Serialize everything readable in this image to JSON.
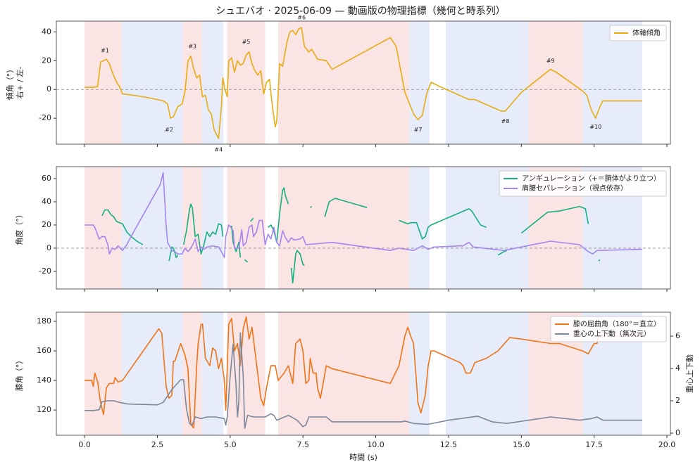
{
  "title": "シュエバオ · 2025-06-09 — 動画版の物理指標（幾何と時系列）",
  "spans": [
    {
      "start": 0,
      "end": 1.28,
      "color": "#fbe4e4"
    },
    {
      "start": 1.28,
      "end": 3.37,
      "color": "#e6ecf9"
    },
    {
      "start": 3.37,
      "end": 4.03,
      "color": "#fbe4e4"
    },
    {
      "start": 4.03,
      "end": 4.77,
      "color": "#e6ecf9"
    },
    {
      "start": 4.9,
      "end": 6.2,
      "color": "#fbe4e4"
    },
    {
      "start": 6.65,
      "end": 11.15,
      "color": "#fbe4e4"
    },
    {
      "start": 11.15,
      "end": 11.85,
      "color": "#e6ecf9"
    },
    {
      "start": 12.4,
      "end": 15.25,
      "color": "#e6ecf9"
    },
    {
      "start": 15.25,
      "end": 17.1,
      "color": "#fbe4e4"
    },
    {
      "start": 17.1,
      "end": 19.15,
      "color": "#e6ecf9"
    }
  ],
  "chart_data": [
    {
      "type": "line",
      "ylabel": [
        "傾角（°）",
        "右+ / 左-"
      ],
      "xlim": [
        -0.97,
        20.12
      ],
      "ylim": [
        -38,
        47.5
      ],
      "yticks": [
        -20,
        0,
        20,
        40
      ],
      "hline": 0,
      "legend": "upper right",
      "series": [
        {
          "name": "体軸傾角",
          "color": "#e8ac12",
          "x": [
            0,
            0.3,
            0.45,
            0.55,
            0.65,
            0.75,
            0.85,
            0.95,
            1.1,
            1.2,
            1.3,
            1.5,
            2.0,
            2.5,
            2.7,
            2.85,
            2.95,
            3.05,
            3.2,
            3.35,
            3.45,
            3.55,
            3.65,
            3.75,
            3.85,
            3.95,
            4.05,
            4.15,
            4.25,
            4.35,
            4.45,
            4.6,
            4.7,
            4.75,
            4.82,
            4.9,
            4.95,
            5.05,
            5.15,
            5.25,
            5.35,
            5.45,
            5.55,
            5.65,
            5.75,
            5.85,
            5.95,
            6.05,
            6.15,
            6.25,
            6.35,
            6.45,
            6.55,
            6.6,
            6.7,
            6.8,
            6.95,
            7.05,
            7.15,
            7.25,
            7.35,
            7.45,
            7.55,
            7.7,
            7.8,
            8.0,
            8.3,
            8.5,
            10.5,
            10.7,
            11.0,
            11.3,
            11.45,
            11.6,
            11.75,
            11.9,
            12.2,
            13.2,
            13.4,
            14.3,
            14.45,
            15.0,
            16.0,
            16.2,
            17.1,
            17.25,
            17.4,
            17.55,
            17.7,
            17.8,
            19.15
          ],
          "values": [
            1.5,
            1.5,
            2,
            19,
            20,
            21,
            18,
            12,
            5,
            2,
            -3,
            -3.5,
            -5,
            -7,
            -8,
            -10,
            -20,
            -19,
            -12,
            -10,
            -1,
            20,
            23,
            14,
            8,
            10,
            -5,
            -4,
            -14,
            -17,
            -28,
            -34,
            -12,
            8,
            0,
            -5,
            20,
            22,
            12,
            20,
            17,
            18,
            24,
            26,
            18,
            13,
            10,
            13,
            -3,
            5,
            7,
            -12,
            -26,
            -22,
            18,
            16,
            33,
            40,
            41,
            38,
            42,
            43,
            30,
            26,
            28,
            21,
            20,
            14,
            36,
            30,
            -2,
            -17,
            -21,
            -18,
            -3,
            5,
            2,
            -7,
            -7,
            -15,
            -15,
            -2,
            14,
            12,
            -1,
            -4,
            -14,
            -20,
            -12,
            -8,
            -8
          ]
        }
      ],
      "annotations": [
        {
          "text": "#1",
          "x": 0.7,
          "y": 27
        },
        {
          "text": "#2",
          "x": 2.9,
          "y": -28
        },
        {
          "text": "#3",
          "x": 3.7,
          "y": 30
        },
        {
          "text": "#4",
          "x": 4.6,
          "y": -42
        },
        {
          "text": "#5",
          "x": 5.55,
          "y": 33
        },
        {
          "text": "#6",
          "x": 7.45,
          "y": 50
        },
        {
          "text": "#7",
          "x": 11.45,
          "y": -28
        },
        {
          "text": "#8",
          "x": 14.45,
          "y": -22
        },
        {
          "text": "#9",
          "x": 16.0,
          "y": 20
        },
        {
          "text": "#10",
          "x": 17.55,
          "y": -26
        }
      ]
    },
    {
      "type": "line",
      "ylabel": [
        "角度（°）"
      ],
      "xlim": [
        -0.97,
        20.12
      ],
      "ylim": [
        -35.2,
        70.3
      ],
      "yticks": [
        -20,
        0,
        20,
        40,
        60
      ],
      "hline": 0,
      "legend": "upper right",
      "series": [
        {
          "name": "アンギュレーション（+＝胴体がより立つ）",
          "color": "#14b07e",
          "x": [
            0.6,
            0.7,
            0.8,
            0.9,
            1.0,
            1.1,
            1.2,
            1.3,
            1.45,
            1.6,
            1.8,
            2.0,
            2.5,
            2.9,
            2.95,
            3.0,
            3.05,
            3.1,
            3.15,
            3.2,
            3.3,
            3.4,
            3.5,
            3.6,
            3.65,
            3.7,
            3.8,
            3.9,
            4.0,
            4.1,
            4.2,
            4.3,
            4.4,
            4.5,
            4.6,
            4.7,
            4.75,
            4.85,
            5.0,
            5.05,
            5.1,
            5.2,
            5.3,
            5.35,
            5.4,
            5.5,
            5.6,
            5.65,
            5.7,
            5.8,
            6.0,
            6.3,
            6.4,
            6.5,
            6.55,
            6.6,
            6.7,
            6.8,
            6.85,
            6.9,
            7.0,
            7.05,
            7.1,
            7.15,
            7.25,
            7.3,
            7.4,
            7.5,
            7.55,
            7.65,
            7.75,
            7.8,
            8.0,
            8.25,
            8.4,
            8.6,
            9.7,
            10.2,
            10.8,
            11.0,
            11.1,
            11.2,
            11.4,
            11.6,
            11.7,
            11.8,
            11.9,
            13.2,
            13.3,
            13.6,
            13.8,
            14.0,
            14.2,
            14.4,
            14.5,
            14.7,
            15.0,
            15.9,
            16.3,
            17.0,
            17.2,
            17.3,
            17.5,
            17.65,
            17.7
          ],
          "values": [
            28,
            33,
            33,
            29,
            27,
            23,
            22,
            21,
            14,
            10,
            6,
            3,
            null,
            -11,
            -5,
            1,
            0,
            -4,
            -8,
            -6,
            null,
            3,
            15,
            33,
            38,
            35,
            10,
            12,
            -5,
            3,
            14,
            10,
            14,
            12,
            21,
            20,
            10,
            null,
            18,
            19,
            5,
            -3,
            5,
            -8,
            null,
            -10,
            -12,
            null,
            23,
            26,
            null,
            18,
            20,
            15,
            10,
            5,
            30,
            50,
            52,
            45,
            38,
            null,
            -17,
            -30,
            -5,
            -2,
            -5,
            -14,
            -15,
            null,
            35,
            36,
            null,
            27,
            40,
            43,
            35,
            null,
            24,
            22,
            21,
            22,
            22,
            8,
            10,
            18,
            20,
            34,
            32,
            20,
            18,
            null,
            -6,
            -3,
            -2,
            null,
            13,
            31,
            32,
            36,
            34,
            21,
            null,
            -11,
            -10
          ]
        },
        {
          "name": "肩腰セパレーション（視点依存）",
          "color": "#a585f0",
          "x": [
            0,
            0.3,
            0.35,
            0.5,
            0.6,
            0.7,
            0.8,
            0.85,
            0.95,
            1.05,
            1.15,
            1.3,
            1.45,
            1.55,
            2.6,
            2.7,
            2.8,
            2.85,
            3.0,
            3.1,
            3.2,
            3.35,
            3.45,
            3.55,
            3.65,
            3.75,
            3.8,
            3.9,
            4.0,
            4.1,
            4.2,
            4.4,
            4.6,
            4.7,
            4.8,
            4.85,
            4.95,
            5.0,
            5.1,
            5.15,
            5.3,
            5.4,
            5.45,
            5.55,
            5.65,
            5.75,
            5.8,
            5.9,
            6.0,
            6.1,
            6.2,
            6.3,
            6.4,
            6.5,
            6.6,
            6.7,
            6.8,
            6.9,
            7.0,
            7.1,
            7.2,
            7.4,
            7.5,
            7.6,
            8.5,
            10.5,
            10.8,
            11.3,
            11.6,
            11.8,
            12.0,
            13.0,
            13.2,
            13.35,
            14.4,
            16.0,
            17.0,
            17.3,
            17.45,
            17.6,
            19.15
          ],
          "values": [
            20,
            20,
            18,
            8,
            10,
            10,
            3,
            -5,
            0,
            -1,
            2,
            -2,
            3,
            8,
            55,
            65,
            20,
            5,
            -2,
            -3,
            -5,
            -5,
            0,
            -3,
            0,
            5,
            8,
            -3,
            1,
            -1,
            1,
            2,
            1,
            -3,
            -8,
            10,
            20,
            19,
            15,
            0,
            0,
            16,
            2,
            5,
            18,
            20,
            10,
            14,
            24,
            24,
            3,
            12,
            8,
            18,
            5,
            2,
            15,
            9,
            5,
            9,
            7,
            8,
            10,
            3,
            5,
            -2,
            0,
            -2,
            2,
            -1,
            1,
            2,
            5,
            1,
            -2,
            6,
            3,
            -3,
            -5,
            -2,
            -1
          ]
        }
      ]
    },
    {
      "type": "line",
      "ylabel": [
        "膝角（°）"
      ],
      "y2label": "重心上下動",
      "xlabel": "時間 (s)",
      "xlim": [
        -0.97,
        20.12
      ],
      "ylim": [
        102.9,
        186.2
      ],
      "yticks": [
        120,
        140,
        160,
        180
      ],
      "y2lim": [
        -0.13,
        7.48
      ],
      "y2ticks": [
        0,
        2,
        4,
        6
      ],
      "legend": "upper right",
      "xticks": [
        {
          "value": 0,
          "label": "0.0"
        },
        2.5,
        {
          "value": 5,
          "label": "5.0"
        },
        7.5,
        {
          "value": 10,
          "label": "10.0"
        },
        12.5,
        {
          "value": 15,
          "label": "15.0"
        },
        17.5,
        {
          "value": 20,
          "label": "20.0"
        }
      ],
      "series": [
        {
          "name": "膝の屈曲角（180°＝直立）",
          "color": "#f07418",
          "x": [
            0,
            0.25,
            0.3,
            0.35,
            0.45,
            0.55,
            0.65,
            0.75,
            0.85,
            1.0,
            1.05,
            1.15,
            1.3,
            2.55,
            2.65,
            2.8,
            2.9,
            3.0,
            3.05,
            3.1,
            3.3,
            3.45,
            3.55,
            3.65,
            3.75,
            3.85,
            3.9,
            4.0,
            4.05,
            4.15,
            4.3,
            4.4,
            4.5,
            4.6,
            4.7,
            4.8,
            4.85,
            4.95,
            5.05,
            5.15,
            5.25,
            5.35,
            5.45,
            5.55,
            5.65,
            5.75,
            5.85,
            6.05,
            6.15,
            6.25,
            6.4,
            6.55,
            6.65,
            6.85,
            7.0,
            7.15,
            7.25,
            7.4,
            7.5,
            7.6,
            7.7,
            7.75,
            7.85,
            7.95,
            8.0,
            8.1,
            8.3,
            8.5,
            10.5,
            10.8,
            11.0,
            11.1,
            11.2,
            11.3,
            11.45,
            11.55,
            11.7,
            11.8,
            11.9,
            12.0,
            12.9,
            13.0,
            13.1,
            13.25,
            13.4,
            13.8,
            14.2,
            14.6,
            15.0,
            16.0,
            16.3,
            17.1,
            17.3,
            17.5,
            17.6,
            17.65,
            19.15
          ],
          "values": [
            140,
            140,
            136,
            145,
            139,
            125,
            117,
            135,
            138,
            138,
            142,
            139,
            140,
            175,
            172,
            136,
            128,
            130,
            153,
            153,
            165,
            157,
            148,
            110,
            108,
            150,
            165,
            178,
            178,
            155,
            150,
            162,
            160,
            148,
            155,
            140,
            120,
            178,
            182,
            160,
            165,
            150,
            175,
            183,
            168,
            176,
            160,
            128,
            123,
            135,
            150,
            150,
            140,
            145,
            150,
            138,
            165,
            168,
            160,
            138,
            140,
            155,
            145,
            145,
            135,
            128,
            150,
            148,
            138,
            150,
            170,
            176,
            170,
            165,
            125,
            118,
            130,
            150,
            160,
            160,
            152,
            150,
            145,
            145,
            152,
            155,
            160,
            169,
            168,
            165,
            165,
            160,
            158,
            165,
            165,
            170,
            170
          ]
        },
        {
          "name": "重心の上下動（無次元）",
          "color": "#7b879b",
          "axis": "y2",
          "x": [
            0,
            0.3,
            0.5,
            0.6,
            0.8,
            1.0,
            1.2,
            1.5,
            2.5,
            2.7,
            3.0,
            3.3,
            3.4,
            3.5,
            3.6,
            3.7,
            3.8,
            4.0,
            4.2,
            4.5,
            4.8,
            4.85,
            4.9,
            5.0,
            5.1,
            5.2,
            5.25,
            5.3,
            5.35,
            5.45,
            5.5,
            5.6,
            5.8,
            6.0,
            6.2,
            6.4,
            6.5,
            6.6,
            7.0,
            7.3,
            7.5,
            7.6,
            7.7,
            8.0,
            8.3,
            8.5,
            10.5,
            10.9,
            11.0,
            11.3,
            11.8,
            12.5,
            13.5,
            14.0,
            14.5,
            16.0,
            17.0,
            17.4,
            17.6,
            17.8,
            19.15
          ],
          "values": [
            1.4,
            1.4,
            1.45,
            1.95,
            2.0,
            2.0,
            1.9,
            1.8,
            1.75,
            1.9,
            2.7,
            3.3,
            3.3,
            1.5,
            0.6,
            0.5,
            1.0,
            0.9,
            1.0,
            1.0,
            0.9,
            0.5,
            1.0,
            3.5,
            5.5,
            3.0,
            1.0,
            2.0,
            6.2,
            3.5,
            0.3,
            1.1,
            1.0,
            1.0,
            1.0,
            1.2,
            1.1,
            0.8,
            1.1,
            0.8,
            0.4,
            0.5,
            1.0,
            1.0,
            1.0,
            0.7,
            0.7,
            0.7,
            0.75,
            0.6,
            0.55,
            0.8,
            1.05,
            0.7,
            0.6,
            1.0,
            0.8,
            0.9,
            1.0,
            0.8,
            0.8
          ]
        }
      ]
    }
  ]
}
